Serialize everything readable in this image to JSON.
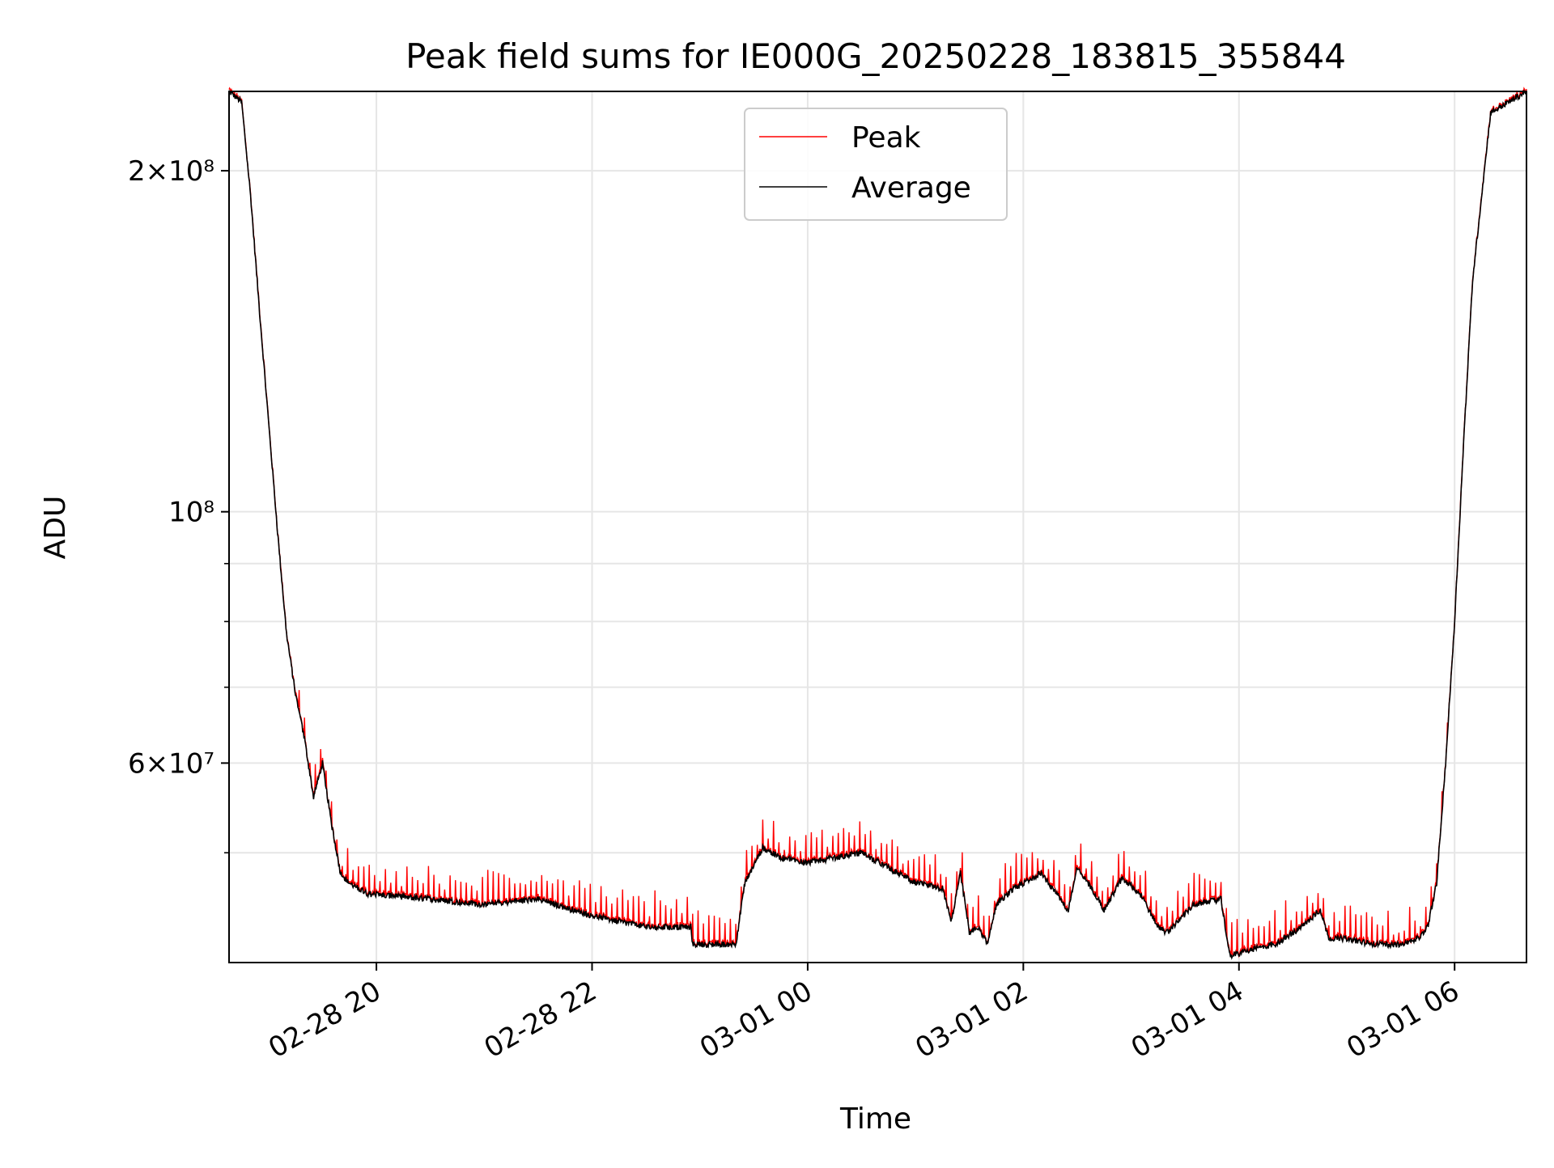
{
  "chart_data": {
    "type": "line",
    "title": "Peak field sums for IE000G_20250228_183815_355844",
    "xlabel": "Time",
    "ylabel": "ADU",
    "y_scale": "log",
    "xlim": [
      "2025-02-28 18:38",
      "2025-03-01 06:40"
    ],
    "ylim": [
      40000000,
      235000000
    ],
    "x_ticks": [
      {
        "value": "2025-02-28 20:00",
        "label": "02-28 20"
      },
      {
        "value": "2025-02-28 22:00",
        "label": "02-28 22"
      },
      {
        "value": "2025-03-01 00:00",
        "label": "03-01 00"
      },
      {
        "value": "2025-03-01 02:00",
        "label": "03-01 02"
      },
      {
        "value": "2025-03-01 04:00",
        "label": "03-01 04"
      },
      {
        "value": "2025-03-01 06:00",
        "label": "03-01 06"
      }
    ],
    "y_ticks_major": [
      {
        "value": 200000000,
        "label": "2×10⁸"
      },
      {
        "value": 100000000,
        "label": "10⁸"
      },
      {
        "value": 60000000,
        "label": "6×10⁷"
      }
    ],
    "y_ticks_minor": [
      50000000,
      70000000,
      80000000,
      90000000
    ],
    "grid": true,
    "legend": {
      "placement": "upper center"
    },
    "series": [
      {
        "name": "Average",
        "color": "#000000",
        "x": [
          "2025-02-28 18:38",
          "2025-02-28 18:45",
          "2025-02-28 18:50",
          "2025-02-28 18:55",
          "2025-02-28 19:00",
          "2025-02-28 19:05",
          "2025-02-28 19:10",
          "2025-02-28 19:15",
          "2025-02-28 19:20",
          "2025-02-28 19:25",
          "2025-02-28 19:30",
          "2025-02-28 19:35",
          "2025-02-28 19:40",
          "2025-02-28 19:45",
          "2025-02-28 19:50",
          "2025-02-28 19:55",
          "2025-02-28 20:30",
          "2025-02-28 21:00",
          "2025-02-28 21:30",
          "2025-02-28 22:00",
          "2025-02-28 22:30",
          "2025-02-28 22:55",
          "2025-02-28 22:56",
          "2025-02-28 23:20",
          "2025-02-28 23:25",
          "2025-02-28 23:35",
          "2025-02-28 23:45",
          "2025-03-01 00:00",
          "2025-03-01 00:15",
          "2025-03-01 00:30",
          "2025-03-01 00:45",
          "2025-03-01 01:00",
          "2025-03-01 01:15",
          "2025-03-01 01:20",
          "2025-03-01 01:25",
          "2025-03-01 01:30",
          "2025-03-01 01:35",
          "2025-03-01 01:40",
          "2025-03-01 01:45",
          "2025-03-01 01:55",
          "2025-03-01 02:10",
          "2025-03-01 02:25",
          "2025-03-01 02:30",
          "2025-03-01 02:40",
          "2025-03-01 02:45",
          "2025-03-01 02:55",
          "2025-03-01 03:05",
          "2025-03-01 03:15",
          "2025-03-01 03:20",
          "2025-03-01 03:35",
          "2025-03-01 03:50",
          "2025-03-01 03:55",
          "2025-03-01 04:05",
          "2025-03-01 04:20",
          "2025-03-01 04:35",
          "2025-03-01 04:45",
          "2025-03-01 04:50",
          "2025-03-01 05:00",
          "2025-03-01 05:15",
          "2025-03-01 05:30",
          "2025-03-01 05:40",
          "2025-03-01 05:45",
          "2025-03-01 05:50",
          "2025-03-01 05:55",
          "2025-03-01 06:00",
          "2025-03-01 06:05",
          "2025-03-01 06:10",
          "2025-03-01 06:20",
          "2025-03-01 06:40"
        ],
        "values": [
          235000000,
          230000000,
          190000000,
          150000000,
          120000000,
          96000000,
          78000000,
          69000000,
          63000000,
          56000000,
          60000000,
          53000000,
          48000000,
          47000000,
          46500000,
          46000000,
          45500000,
          45000000,
          45500000,
          44000000,
          43000000,
          43000000,
          41500000,
          41500000,
          47000000,
          50500000,
          49500000,
          49000000,
          49500000,
          50000000,
          48500000,
          47000000,
          46500000,
          43500000,
          48000000,
          42500000,
          43000000,
          41500000,
          45000000,
          46500000,
          48000000,
          44500000,
          48500000,
          46000000,
          44500000,
          47500000,
          46000000,
          43000000,
          42500000,
          45000000,
          45500000,
          40500000,
          41000000,
          41500000,
          43000000,
          44500000,
          42000000,
          42000000,
          41500000,
          41500000,
          42000000,
          43000000,
          47000000,
          60000000,
          80000000,
          115000000,
          160000000,
          225000000,
          235000000
        ]
      },
      {
        "name": "Peak",
        "color": "#ff0000",
        "note": "Closely tracks Average with short upward spikes of roughly 1–3×10⁶ ADU at frequent intervals"
      }
    ]
  }
}
